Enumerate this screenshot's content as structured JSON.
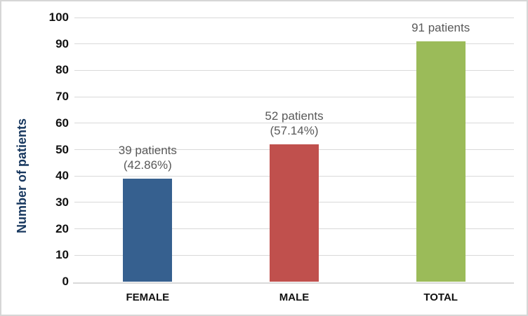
{
  "chart_data": {
    "type": "bar",
    "title": "",
    "xlabel": "",
    "ylabel": "Number of patients",
    "ylim": [
      0,
      100
    ],
    "ytick_step": 10,
    "grid": true,
    "legend": "none",
    "categories": [
      "FEMALE",
      "MALE",
      "TOTAL"
    ],
    "values": [
      39,
      52,
      91
    ],
    "data_labels": [
      [
        "39 patients",
        "(42.86%)"
      ],
      [
        "52 patients",
        "(57.14%)"
      ],
      [
        "91 patients"
      ]
    ],
    "bar_colors": [
      "#36608F",
      "#C0504D",
      "#9BBB59"
    ]
  },
  "colors": {
    "background": "#FFFFFF",
    "border": "#D6D6D6",
    "gridline": "#D9D9D9",
    "axis_line": "#D9D9D9",
    "tick_label": "#111111",
    "category_label": "#111111",
    "data_label": "#595959",
    "axis_title": "#17375E"
  }
}
